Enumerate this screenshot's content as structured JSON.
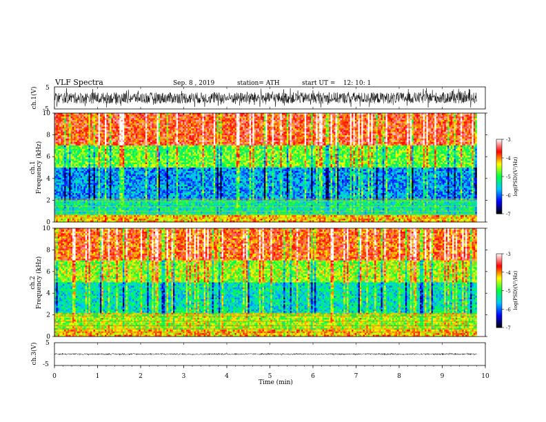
{
  "header": {
    "title": "VLF Spectra",
    "date": "Sep. 8 , 2019",
    "station": "station= ATH",
    "start_ut": "start UT =    12: 10: 1"
  },
  "colors": {
    "colormap": [
      "#000000",
      "#0000ff",
      "#00c8ff",
      "#00ff40",
      "#ffff00",
      "#ff0000",
      "#ffffff"
    ],
    "trace": "#000000",
    "frame": "#000000"
  },
  "chart_data": [
    {
      "type": "line",
      "id": "ch1-waveform",
      "ylabel": "ch.1(V)",
      "ylim": [
        -5,
        5
      ],
      "yticks": [
        "5",
        "-5"
      ],
      "x_range_min": [
        0,
        10
      ],
      "data_span_min": [
        0,
        9.8
      ],
      "description_values": {
        "mean_level_V": 0,
        "typical_amplitude_V": 2.5
      }
    },
    {
      "type": "heatmap",
      "id": "ch1-spectrogram",
      "ylabel": "ch.1\nFrequency (kHz)",
      "ylim": [
        0,
        10
      ],
      "yticks": [
        "0",
        "2",
        "4",
        "6",
        "8",
        "10"
      ],
      "x_range_min": [
        0,
        10
      ],
      "data_span_min": [
        0,
        9.8
      ],
      "colorbar": {
        "label": "log(PSD)(V²/Hz)",
        "range": [
          -7,
          -3
        ],
        "ticks": [
          "-3",
          "-4",
          "-5",
          "-6",
          "-7"
        ]
      },
      "bands_log_psd": [
        {
          "freq_khz": [
            0,
            0.6
          ],
          "value": -4.2
        },
        {
          "freq_khz": [
            0.6,
            2.0
          ],
          "value": -5.3
        },
        {
          "freq_khz": [
            2.0,
            5.0
          ],
          "value": -5.8
        },
        {
          "freq_khz": [
            5.0,
            7.0
          ],
          "value": -4.8
        },
        {
          "freq_khz": [
            7.0,
            10.0
          ],
          "value": -3.7
        }
      ]
    },
    {
      "type": "heatmap",
      "id": "ch2-spectrogram",
      "ylabel": "ch.2\nFrequency (kHz)",
      "ylim": [
        0,
        10
      ],
      "yticks": [
        "0",
        "2",
        "4",
        "6",
        "8",
        "10"
      ],
      "x_range_min": [
        0,
        10
      ],
      "data_span_min": [
        0,
        9.8
      ],
      "colorbar": {
        "label": "log(PSD)(V²/Hz)",
        "range": [
          -7,
          -3
        ],
        "ticks": [
          "-3",
          "-4",
          "-5",
          "-6",
          "-7"
        ]
      },
      "bands_log_psd": [
        {
          "freq_khz": [
            0,
            0.6
          ],
          "value": -4.2
        },
        {
          "freq_khz": [
            0.6,
            2.2
          ],
          "value": -4.6
        },
        {
          "freq_khz": [
            2.2,
            5.0
          ],
          "value": -5.4
        },
        {
          "freq_khz": [
            5.0,
            7.0
          ],
          "value": -4.6
        },
        {
          "freq_khz": [
            7.0,
            10.0
          ],
          "value": -3.8
        }
      ]
    },
    {
      "type": "line",
      "id": "ch3-waveform",
      "ylabel": "ch.3(V)",
      "ylim": [
        -5,
        5
      ],
      "yticks": [
        "5",
        "-5"
      ],
      "x_range_min": [
        0,
        10
      ],
      "data_span_min": [
        0,
        9.8
      ],
      "description_values": {
        "mean_level_V": 0,
        "typical_amplitude_V": 0.3
      }
    }
  ],
  "x_axis": {
    "label": "Time (min)",
    "ticks": [
      "0",
      "1",
      "2",
      "3",
      "4",
      "5",
      "6",
      "7",
      "8",
      "9",
      "10"
    ]
  }
}
